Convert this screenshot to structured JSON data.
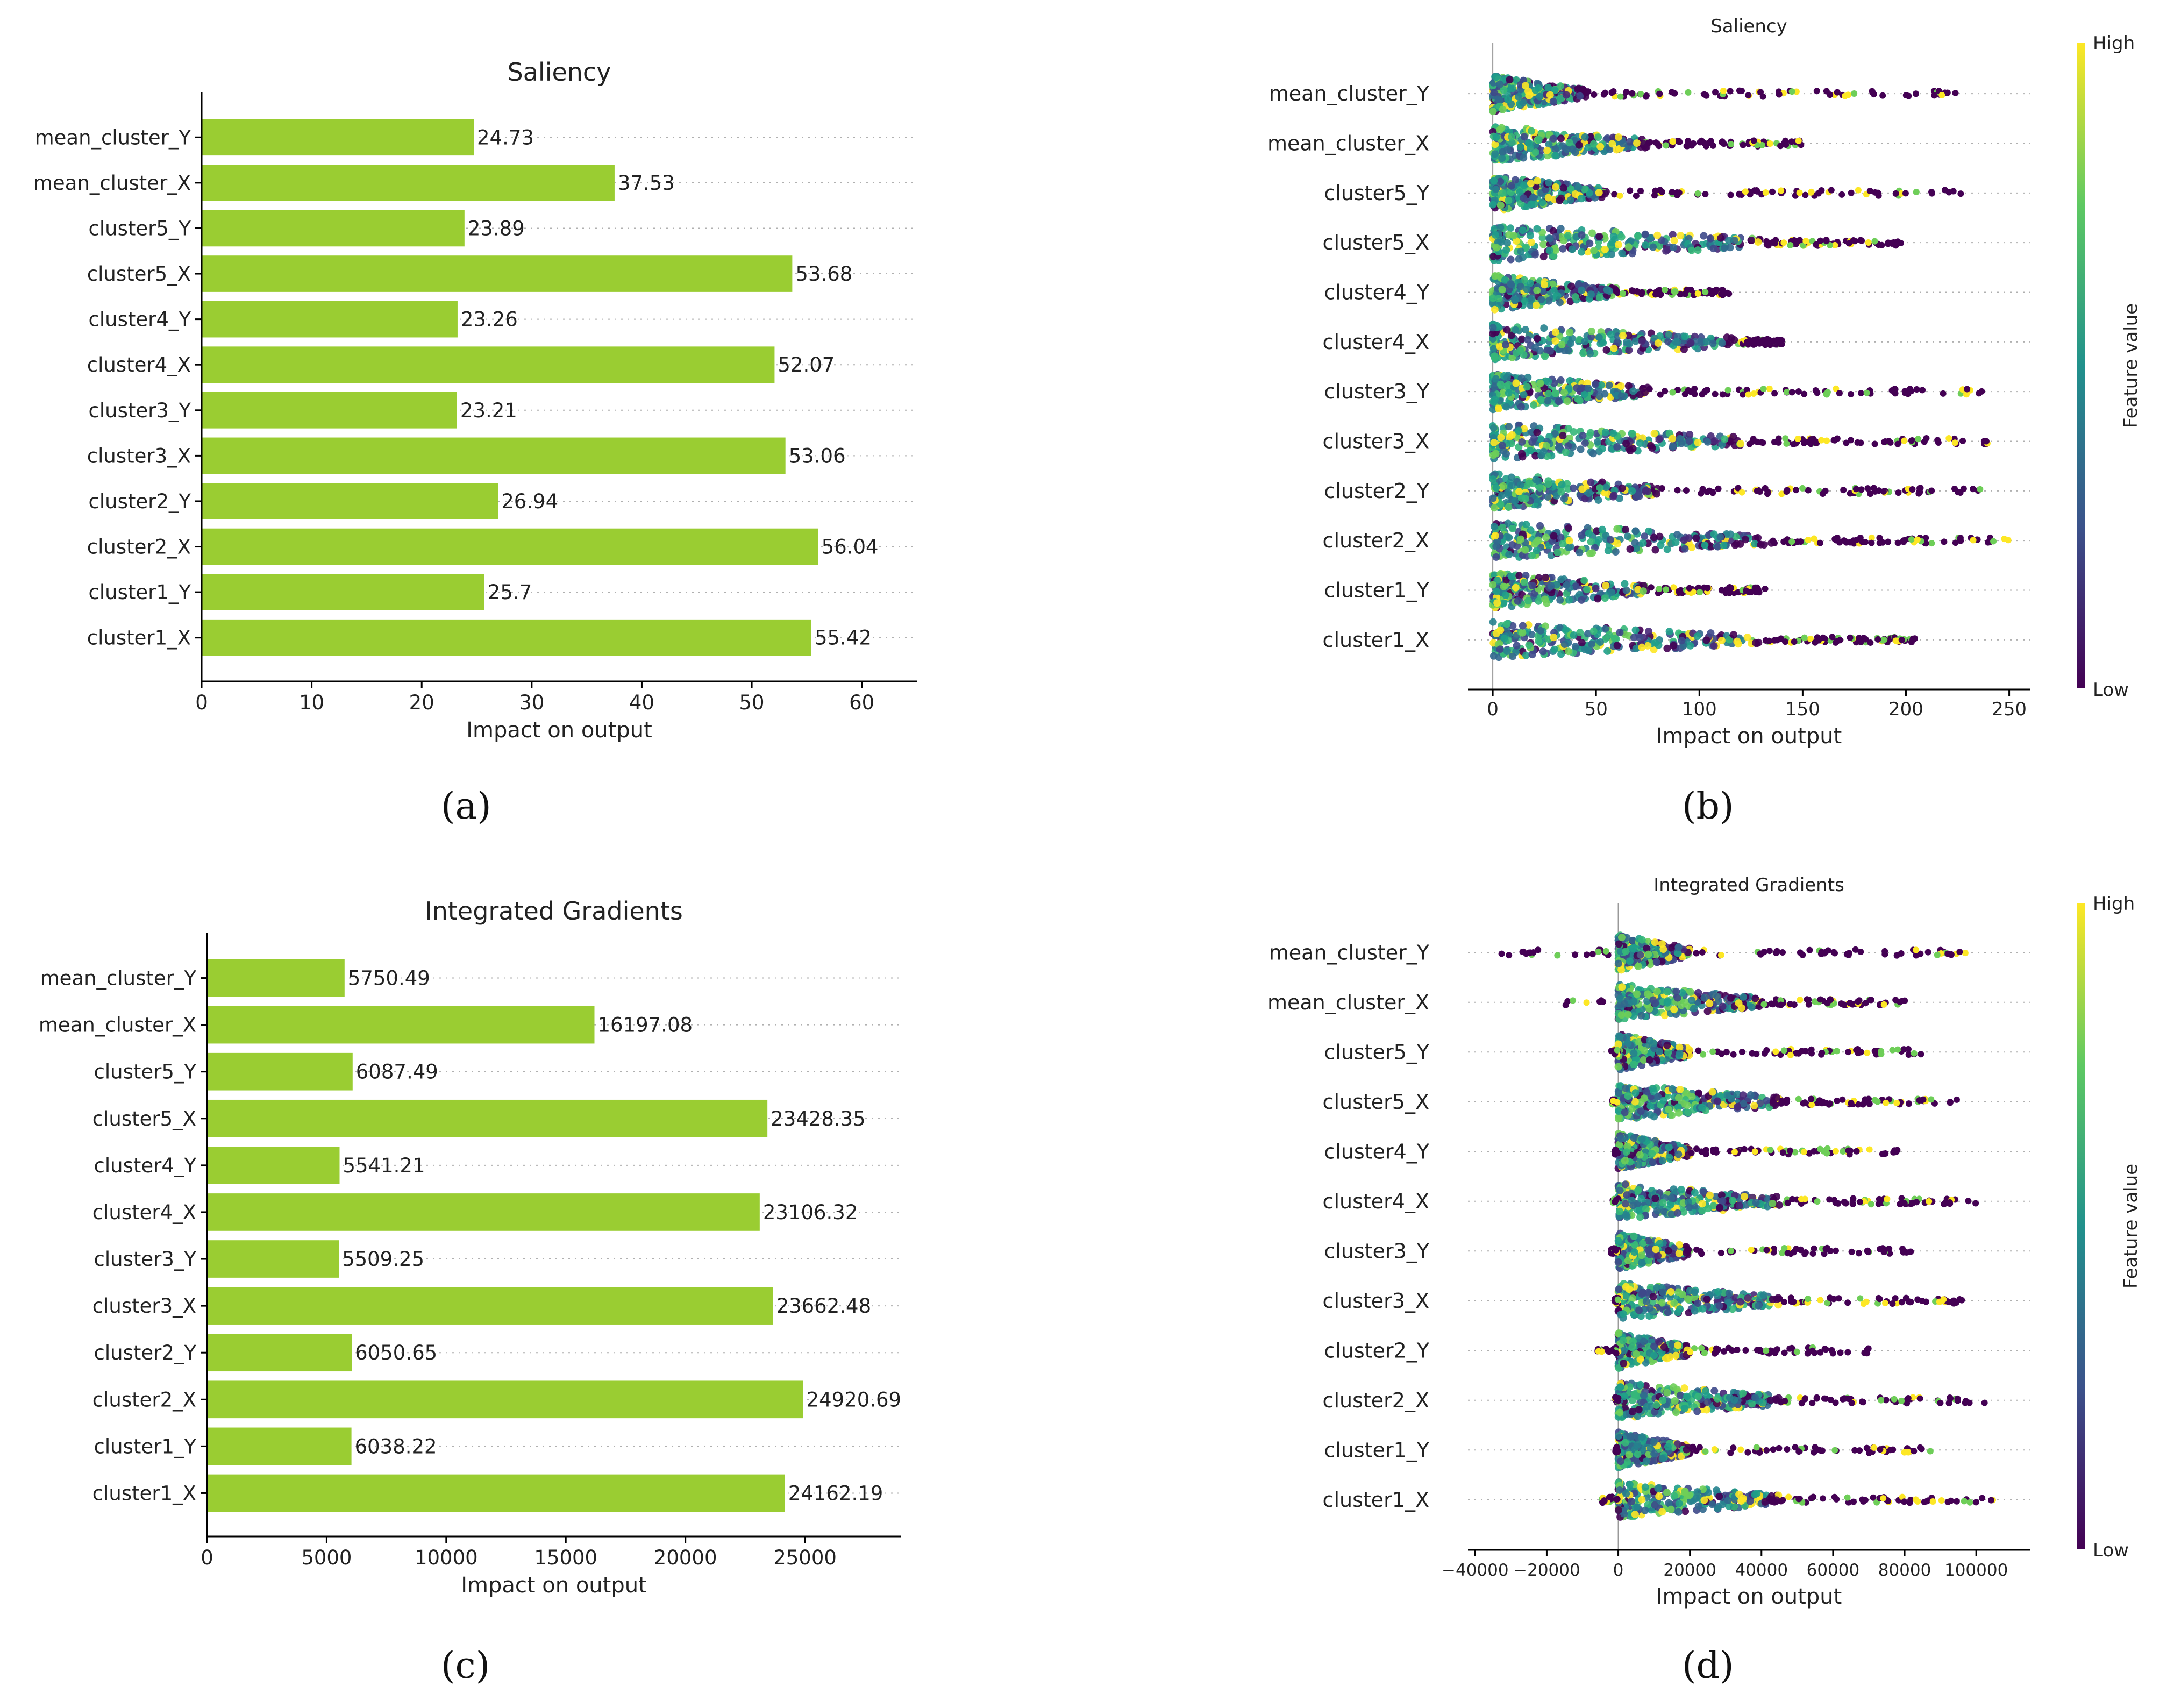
{
  "colors": {
    "bar": "#9ACD32",
    "axis": "#000000",
    "grid": "#b0b0b0",
    "text": "#222222"
  },
  "panel_labels": [
    "(a)",
    "(b)",
    "(c)",
    "(d)"
  ],
  "chart_data": [
    {
      "id": "a",
      "type": "bar",
      "orientation": "horizontal",
      "title": "Saliency",
      "xlabel": "Impact on output",
      "categories": [
        "mean_cluster_Y",
        "mean_cluster_X",
        "cluster5_Y",
        "cluster5_X",
        "cluster4_Y",
        "cluster4_X",
        "cluster3_Y",
        "cluster3_X",
        "cluster2_Y",
        "cluster2_X",
        "cluster1_Y",
        "cluster1_X"
      ],
      "values": [
        24.73,
        37.53,
        23.89,
        53.68,
        23.26,
        52.07,
        23.21,
        53.06,
        26.94,
        56.04,
        25.7,
        55.42
      ],
      "value_labels": [
        "24.73",
        "37.53",
        "23.89",
        "53.68",
        "23.26",
        "52.07",
        "23.21",
        "53.06",
        "26.94",
        "56.04",
        "25.7",
        "55.42"
      ],
      "xlim": [
        0,
        65
      ],
      "xticks": [
        0,
        10,
        20,
        30,
        40,
        50,
        60
      ],
      "xtick_labels": [
        "0",
        "10",
        "20",
        "30",
        "40",
        "50",
        "60"
      ]
    },
    {
      "id": "b",
      "type": "scatter",
      "subtype": "beeswarm",
      "title": "Saliency",
      "xlabel": "Impact on output",
      "categories": [
        "mean_cluster_Y",
        "mean_cluster_X",
        "cluster5_Y",
        "cluster5_X",
        "cluster4_Y",
        "cluster4_X",
        "cluster3_Y",
        "cluster3_X",
        "cluster2_Y",
        "cluster2_X",
        "cluster1_Y",
        "cluster1_X"
      ],
      "dense_max": [
        45,
        75,
        55,
        130,
        60,
        120,
        75,
        120,
        80,
        135,
        75,
        130
      ],
      "tail_max": [
        228,
        150,
        230,
        200,
        115,
        140,
        240,
        240,
        237,
        250,
        133,
        205
      ],
      "xlim": [
        -12,
        260
      ],
      "xticks": [
        0,
        50,
        100,
        150,
        200,
        250
      ],
      "xtick_labels": [
        "0",
        "50",
        "100",
        "150",
        "200",
        "250"
      ],
      "colorbar": {
        "label": "Feature value",
        "high": "High",
        "low": "Low"
      }
    },
    {
      "id": "c",
      "type": "bar",
      "orientation": "horizontal",
      "title": "Integrated Gradients",
      "xlabel": "Impact on output",
      "categories": [
        "mean_cluster_Y",
        "mean_cluster_X",
        "cluster5_Y",
        "cluster5_X",
        "cluster4_Y",
        "cluster4_X",
        "cluster3_Y",
        "cluster3_X",
        "cluster2_Y",
        "cluster2_X",
        "cluster1_Y",
        "cluster1_X"
      ],
      "values": [
        5750.49,
        16197.08,
        6087.49,
        23428.35,
        5541.21,
        23106.32,
        5509.25,
        23662.48,
        6050.65,
        24920.69,
        6038.22,
        24162.19
      ],
      "value_labels": [
        "5750.49",
        "16197.08",
        "6087.49",
        "23428.35",
        "5541.21",
        "23106.32",
        "5509.25",
        "23662.48",
        "6050.65",
        "24920.69",
        "6038.22",
        "24162.19"
      ],
      "xlim": [
        0,
        29000
      ],
      "xticks": [
        0,
        5000,
        10000,
        15000,
        20000,
        25000
      ],
      "xtick_labels": [
        "0",
        "5000",
        "10000",
        "15000",
        "20000",
        "25000"
      ]
    },
    {
      "id": "d",
      "type": "scatter",
      "subtype": "beeswarm",
      "title": "Integrated Gradients",
      "xlabel": "Impact on output",
      "categories": [
        "mean_cluster_Y",
        "mean_cluster_X",
        "cluster5_Y",
        "cluster5_X",
        "cluster4_Y",
        "cluster4_X",
        "cluster3_Y",
        "cluster3_X",
        "cluster2_Y",
        "cluster2_X",
        "cluster1_Y",
        "cluster1_X"
      ],
      "dense_max": [
        20000,
        40000,
        20000,
        45000,
        20000,
        45000,
        20000,
        45000,
        20000,
        45000,
        20000,
        45000
      ],
      "tail_min": [
        -35000,
        -17000,
        -2000,
        -2000,
        -1000,
        -2000,
        -2000,
        -1000,
        -7000,
        -1000,
        -1000,
        -5000
      ],
      "tail_max": [
        97000,
        81000,
        86000,
        95000,
        78000,
        100000,
        83000,
        96000,
        70000,
        103000,
        88000,
        108000
      ],
      "xlim": [
        -42000,
        115000
      ],
      "xticks": [
        -40000,
        -20000,
        0,
        20000,
        40000,
        60000,
        80000,
        100000
      ],
      "xtick_labels": [
        "−40000",
        "−20000",
        "0",
        "20000",
        "40000",
        "60000",
        "80000",
        "100000"
      ],
      "colorbar": {
        "label": "Feature value",
        "high": "High",
        "low": "Low"
      }
    }
  ]
}
